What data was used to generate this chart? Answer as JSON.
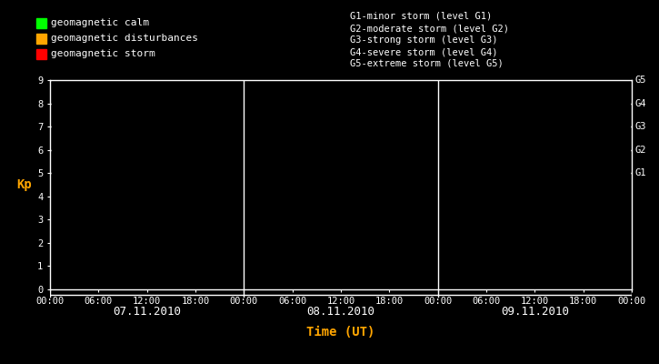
{
  "bg_color": "#000000",
  "fg_color": "#ffffff",
  "orange_color": "#ffa500",
  "legend_items": [
    {
      "label": "geomagnetic calm",
      "color": "#00ff00"
    },
    {
      "label": "geomagnetic disturbances",
      "color": "#ffa500"
    },
    {
      "label": "geomagnetic storm",
      "color": "#ff0000"
    }
  ],
  "storm_levels": [
    "G1-minor storm (level G1)",
    "G2-moderate storm (level G2)",
    "G3-strong storm (level G3)",
    "G4-severe storm (level G4)",
    "G5-extreme storm (level G5)"
  ],
  "right_labels": [
    "G5",
    "G4",
    "G3",
    "G2",
    "G1"
  ],
  "right_label_yvals": [
    9,
    8,
    7,
    6,
    5
  ],
  "dotted_yvals": [
    9,
    8,
    7,
    6,
    5
  ],
  "days": [
    "07.11.2010",
    "08.11.2010",
    "09.11.2010"
  ],
  "day_boundaries": [
    0,
    24,
    48,
    72
  ],
  "xlabel": "Time (UT)",
  "ylabel": "Kp",
  "yticks": [
    0,
    1,
    2,
    3,
    4,
    5,
    6,
    7,
    8,
    9
  ],
  "xtick_labels": [
    "00:00",
    "06:00",
    "12:00",
    "18:00",
    "00:00",
    "06:00",
    "12:00",
    "18:00",
    "00:00",
    "06:00",
    "12:00",
    "18:00",
    "00:00"
  ],
  "xtick_positions": [
    0,
    6,
    12,
    18,
    24,
    30,
    36,
    42,
    48,
    54,
    60,
    66,
    72
  ],
  "xmin": 0,
  "xmax": 72,
  "ymin": 0,
  "ymax": 9,
  "legend_font_size": 8,
  "storm_font_size": 7.5,
  "axis_font_size": 8,
  "tick_font_size": 7.5
}
